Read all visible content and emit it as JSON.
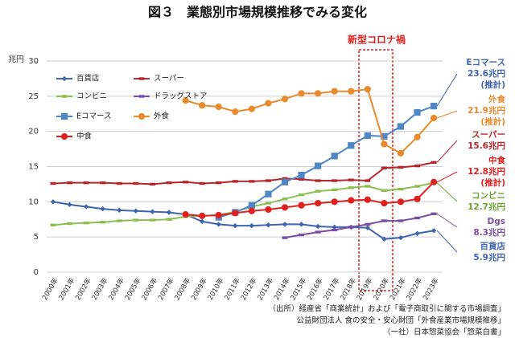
{
  "chart_data": {
    "type": "line",
    "title": "図３　業態別市場規模推移でみる変化",
    "y_unit": "兆円",
    "categories": [
      "2000年",
      "2001年",
      "2002年",
      "2003年",
      "2004年",
      "2005年",
      "2006年",
      "2007年",
      "2008年",
      "2009年",
      "2010年",
      "2011年",
      "2012年",
      "2013年",
      "2014年",
      "2015年",
      "2016年",
      "2017年",
      "2018年",
      "2019年",
      "2020年",
      "2021年",
      "2022年",
      "2023年"
    ],
    "ylim": [
      0,
      30
    ],
    "yticks": [
      0,
      5,
      10,
      15,
      20,
      25,
      30
    ],
    "grid": true,
    "series": [
      {
        "name": "百貨店",
        "color": "#3f64ad",
        "marker": "diamond",
        "values": [
          10.0,
          9.6,
          9.3,
          9.0,
          8.8,
          8.7,
          8.6,
          8.5,
          8.2,
          7.2,
          6.8,
          6.6,
          6.6,
          6.7,
          6.8,
          6.8,
          6.5,
          6.4,
          6.4,
          6.3,
          4.7,
          4.9,
          5.5,
          5.9
        ]
      },
      {
        "name": "スーパー",
        "color": "#b8262c",
        "marker": "dash",
        "values": [
          12.6,
          12.7,
          12.7,
          12.7,
          12.6,
          12.6,
          12.5,
          12.7,
          12.8,
          12.6,
          12.7,
          12.9,
          12.9,
          13.0,
          13.3,
          13.2,
          13.0,
          13.0,
          13.1,
          13.0,
          14.8,
          14.9,
          15.1,
          15.6
        ]
      },
      {
        "name": "コンビニ",
        "color": "#8cbf4f",
        "marker": "dash",
        "values": [
          6.7,
          6.9,
          7.0,
          7.1,
          7.3,
          7.4,
          7.4,
          7.5,
          7.9,
          8.0,
          8.1,
          8.6,
          9.3,
          9.8,
          10.4,
          11.0,
          11.5,
          11.7,
          12.0,
          12.2,
          11.6,
          11.8,
          12.2,
          12.7
        ]
      },
      {
        "name": "ドラッグストア",
        "color": "#7b4ea3",
        "marker": "dash",
        "values": [
          null,
          null,
          null,
          null,
          null,
          null,
          null,
          null,
          null,
          null,
          null,
          null,
          null,
          null,
          4.9,
          5.3,
          5.7,
          6.0,
          6.4,
          6.8,
          7.3,
          7.3,
          7.7,
          8.3
        ]
      },
      {
        "name": "Eコマース",
        "color": "#4f86c6",
        "marker": "square",
        "values": [
          null,
          null,
          null,
          null,
          null,
          null,
          null,
          null,
          null,
          null,
          7.8,
          8.5,
          9.5,
          11.1,
          12.8,
          13.8,
          15.1,
          16.5,
          18.0,
          19.4,
          19.3,
          20.7,
          22.7,
          23.6
        ]
      },
      {
        "name": "外食",
        "color": "#e98a2c",
        "marker": "circle",
        "values": [
          null,
          null,
          null,
          null,
          null,
          null,
          null,
          null,
          24.4,
          23.7,
          23.5,
          22.8,
          23.2,
          24.0,
          24.6,
          25.4,
          25.4,
          25.7,
          25.7,
          26.0,
          18.2,
          16.9,
          19.2,
          21.9
        ]
      },
      {
        "name": "中食",
        "color": "#e0201f",
        "marker": "circle",
        "values": [
          null,
          null,
          null,
          null,
          null,
          null,
          null,
          null,
          8.2,
          8.0,
          8.1,
          8.4,
          8.7,
          8.9,
          9.2,
          9.5,
          9.8,
          10.0,
          10.2,
          10.3,
          9.8,
          10.0,
          10.4,
          12.8
        ]
      }
    ],
    "annotations": [
      {
        "lines": [
          "Eコマース",
          "23.6兆円",
          "(推計)"
        ],
        "color": "#3f64ad",
        "series": 4
      },
      {
        "lines": [
          "外食",
          "21.9兆円",
          "(推計)"
        ],
        "color": "#e98a2c",
        "series": 5
      },
      {
        "lines": [
          "スーパー",
          "15.6兆円"
        ],
        "color": "#b8262c",
        "series": 1
      },
      {
        "lines": [
          "中食",
          "12.8兆円",
          "(推計)"
        ],
        "color": "#e0201f",
        "series": 6
      },
      {
        "lines": [
          "コンビニ",
          "12.7兆円"
        ],
        "color": "#6aa62e",
        "series": 2
      },
      {
        "lines": [
          "Dgs",
          "8.3兆円"
        ],
        "color": "#7b4ea3",
        "series": 3
      },
      {
        "lines": [
          "百貨店",
          "5.9兆円"
        ],
        "color": "#3f64ad",
        "series": 0
      }
    ],
    "covid_label": "新型コロナ禍",
    "source": [
      "（出所）経産省「商業統計」および「電子商取引に関する市場調査」",
      "公益財団法人 食の安全・安心財団「外食産業市場規模推移」",
      "（一社）日本惣菜協会「惣菜白書」"
    ]
  }
}
